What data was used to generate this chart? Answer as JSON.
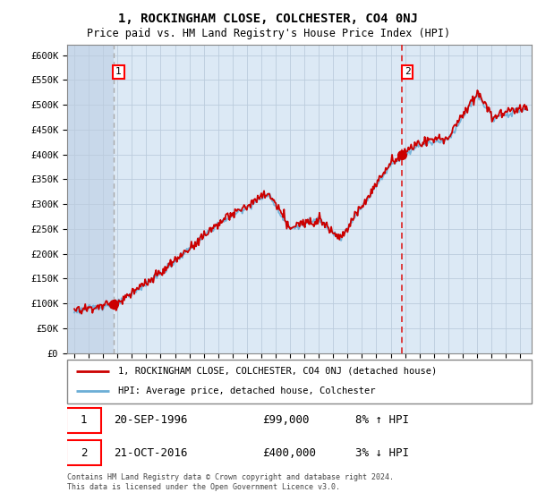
{
  "title": "1, ROCKINGHAM CLOSE, COLCHESTER, CO4 0NJ",
  "subtitle": "Price paid vs. HM Land Registry's House Price Index (HPI)",
  "ylabel_ticks": [
    "£0",
    "£50K",
    "£100K",
    "£150K",
    "£200K",
    "£250K",
    "£300K",
    "£350K",
    "£400K",
    "£450K",
    "£500K",
    "£550K",
    "£600K"
  ],
  "ytick_values": [
    0,
    50000,
    100000,
    150000,
    200000,
    250000,
    300000,
    350000,
    400000,
    450000,
    500000,
    550000,
    600000
  ],
  "sale1": {
    "date_num": 1996.72,
    "price": 99000,
    "label": "1",
    "date_str": "20-SEP-1996"
  },
  "sale2": {
    "date_num": 2016.8,
    "price": 400000,
    "label": "2",
    "date_str": "21-OCT-2016"
  },
  "legend1": "1, ROCKINGHAM CLOSE, COLCHESTER, CO4 0NJ (detached house)",
  "legend2": "HPI: Average price, detached house, Colchester",
  "footer": "Contains HM Land Registry data © Crown copyright and database right 2024.\nThis data is licensed under the Open Government Licence v3.0.",
  "hpi_color": "#6baed6",
  "sale_color": "#cc0000",
  "sale1_vline_color": "#aaaaaa",
  "sale2_vline_color": "#dd2222",
  "bg_color": "#dce9f5",
  "hatch_color": "#c8d8ea",
  "grid_color": "#bbccdd",
  "table_row1": [
    "1",
    "20-SEP-1996",
    "£99,000",
    "8% ↑ HPI"
  ],
  "table_row2": [
    "2",
    "21-OCT-2016",
    "£400,000",
    "3% ↓ HPI"
  ],
  "xmin": 1993.5,
  "xmax": 2025.8,
  "ymin": 0,
  "ymax": 620000
}
